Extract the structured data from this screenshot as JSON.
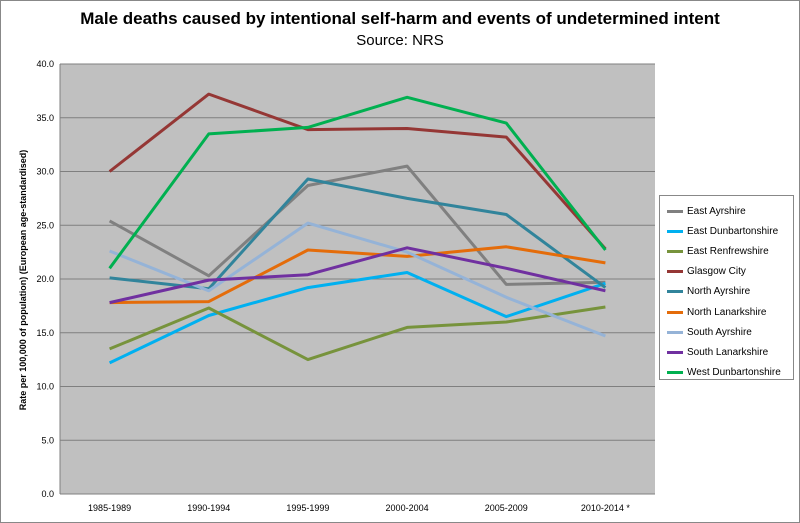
{
  "chart_data": {
    "type": "line",
    "title": "Male deaths caused by intentional self-harm and events of undetermined intent",
    "subtitle": "Source: NRS",
    "xlabel": "",
    "ylabel": "Rate per 100,000 of population) (European age-standardised)",
    "ylim": [
      0,
      40
    ],
    "yticks": [
      "0.0",
      "5.0",
      "10.0",
      "15.0",
      "20.0",
      "25.0",
      "30.0",
      "35.0",
      "40.0"
    ],
    "categories": [
      "1985-1989",
      "1990-1994",
      "1995-1999",
      "2000-2004",
      "2005-2009",
      "2010-2014 *"
    ],
    "grid": true,
    "legend_position": "right",
    "plot_background": "#c0c0c0",
    "series": [
      {
        "name": "East Ayrshire",
        "color": "#808080",
        "values": [
          25.4,
          20.3,
          28.7,
          30.5,
          19.5,
          19.7
        ]
      },
      {
        "name": "East Dunbartonshire",
        "color": "#00b0f0",
        "values": [
          12.2,
          16.6,
          19.2,
          20.6,
          16.5,
          19.6
        ]
      },
      {
        "name": "East Renfrewshire",
        "color": "#77933c",
        "values": [
          13.5,
          17.3,
          12.5,
          15.5,
          16.0,
          17.4
        ]
      },
      {
        "name": "Glasgow City",
        "color": "#953735",
        "values": [
          30.0,
          37.2,
          33.9,
          34.0,
          33.2,
          22.8
        ]
      },
      {
        "name": "North Ayrshire",
        "color": "#31849b",
        "values": [
          20.1,
          19.1,
          29.3,
          27.5,
          26.0,
          19.2
        ]
      },
      {
        "name": "North Lanarkshire",
        "color": "#e46c0a",
        "values": [
          17.8,
          17.9,
          22.7,
          22.1,
          23.0,
          21.5
        ]
      },
      {
        "name": "South Ayrshire",
        "color": "#95b3d7",
        "values": [
          22.6,
          18.9,
          25.2,
          22.5,
          18.3,
          14.7
        ]
      },
      {
        "name": "South Lanarkshire",
        "color": "#7030a0",
        "values": [
          17.8,
          19.9,
          20.4,
          22.9,
          21.0,
          18.9
        ]
      },
      {
        "name": "West Dunbartonshire",
        "color": "#00b050",
        "values": [
          21.0,
          33.5,
          34.1,
          36.9,
          34.5,
          22.7
        ]
      }
    ]
  }
}
